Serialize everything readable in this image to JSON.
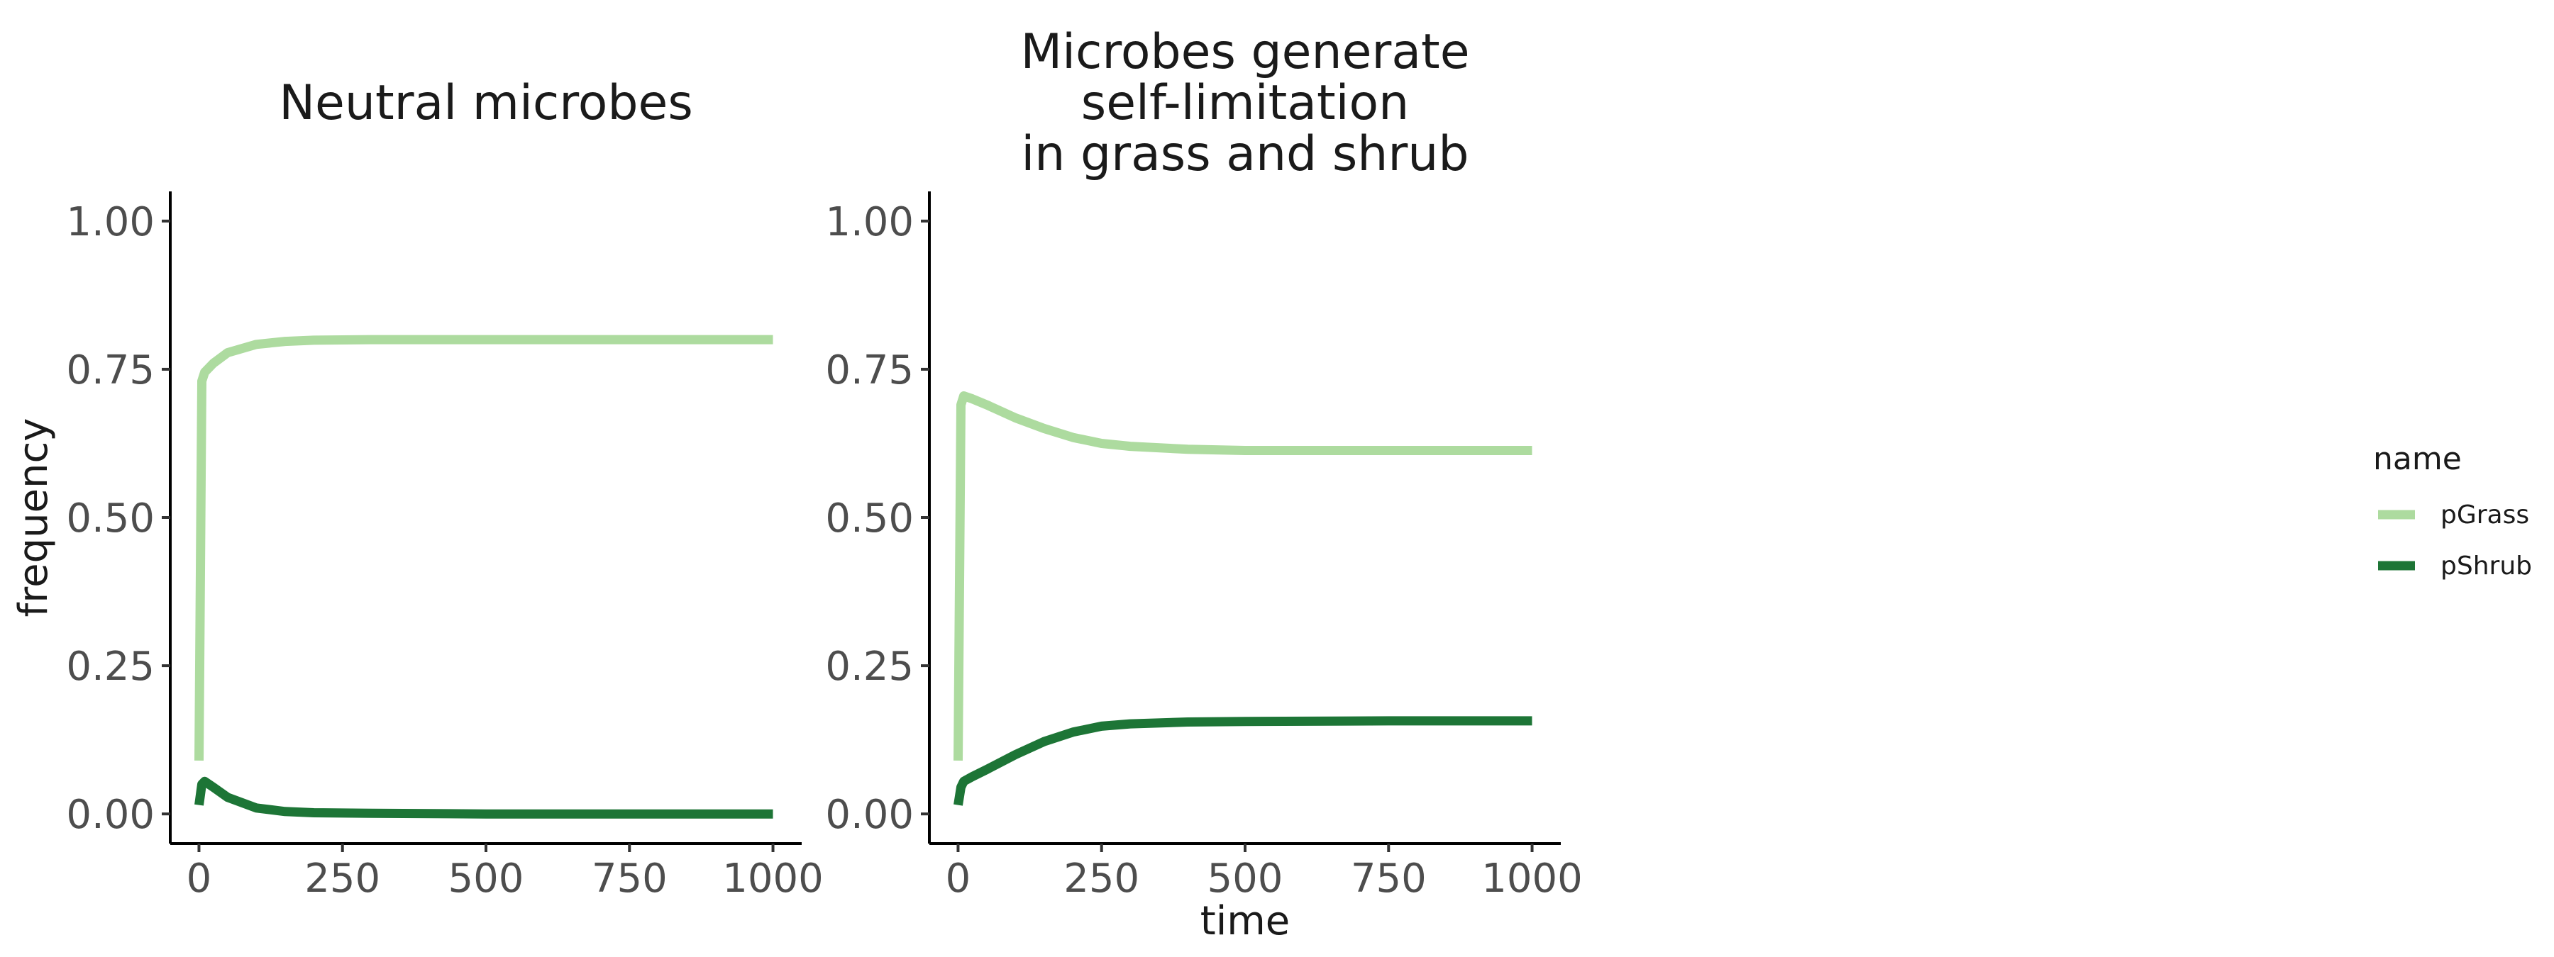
{
  "chart_data": [
    {
      "type": "line",
      "title_lines": [
        "Neutral microbes"
      ],
      "xlabel": "",
      "ylabel": "frequency",
      "xlim": [
        -50,
        1050
      ],
      "ylim": [
        -0.05,
        1.05
      ],
      "x_ticks": [
        0,
        250,
        500,
        750,
        1000
      ],
      "x_tick_labels": [
        "0",
        "250",
        "500",
        "750",
        "1000"
      ],
      "y_ticks": [
        0,
        0.25,
        0.5,
        0.75,
        1
      ],
      "y_tick_labels": [
        "0.00",
        "0.25",
        "0.50",
        "0.75",
        "1.00"
      ],
      "series": [
        {
          "name": "pGrass",
          "color": "#addb9f",
          "points": [
            [
              0,
              0.09
            ],
            [
              5,
              0.73
            ],
            [
              10,
              0.745
            ],
            [
              25,
              0.76
            ],
            [
              50,
              0.778
            ],
            [
              100,
              0.792
            ],
            [
              150,
              0.797
            ],
            [
              200,
              0.799
            ],
            [
              300,
              0.8
            ],
            [
              500,
              0.8
            ],
            [
              750,
              0.8
            ],
            [
              1000,
              0.8
            ]
          ]
        },
        {
          "name": "pShrub",
          "color": "#1d7536",
          "points": [
            [
              0,
              0.015
            ],
            [
              5,
              0.05
            ],
            [
              10,
              0.055
            ],
            [
              25,
              0.045
            ],
            [
              50,
              0.028
            ],
            [
              100,
              0.01
            ],
            [
              150,
              0.004
            ],
            [
              200,
              0.002
            ],
            [
              300,
              0.001
            ],
            [
              500,
              0.0
            ],
            [
              750,
              0.0
            ],
            [
              1000,
              0.0
            ]
          ]
        }
      ]
    },
    {
      "type": "line",
      "title_lines": [
        "Microbes generate",
        "self-limitation",
        "in grass and shrub"
      ],
      "xlabel": "time",
      "ylabel": "",
      "xlim": [
        -50,
        1050
      ],
      "ylim": [
        -0.05,
        1.05
      ],
      "x_ticks": [
        0,
        250,
        500,
        750,
        1000
      ],
      "x_tick_labels": [
        "0",
        "250",
        "500",
        "750",
        "1000"
      ],
      "y_ticks": [
        0,
        0.25,
        0.5,
        0.75,
        1
      ],
      "y_tick_labels": [
        "0.00",
        "0.25",
        "0.50",
        "0.75",
        "1.00"
      ],
      "series": [
        {
          "name": "pGrass",
          "color": "#addb9f",
          "points": [
            [
              0,
              0.09
            ],
            [
              5,
              0.69
            ],
            [
              10,
              0.705
            ],
            [
              25,
              0.7
            ],
            [
              50,
              0.69
            ],
            [
              100,
              0.668
            ],
            [
              150,
              0.65
            ],
            [
              200,
              0.635
            ],
            [
              250,
              0.625
            ],
            [
              300,
              0.62
            ],
            [
              400,
              0.615
            ],
            [
              500,
              0.613
            ],
            [
              750,
              0.613
            ],
            [
              1000,
              0.613
            ]
          ]
        },
        {
          "name": "pShrub",
          "color": "#1d7536",
          "points": [
            [
              0,
              0.015
            ],
            [
              5,
              0.045
            ],
            [
              10,
              0.055
            ],
            [
              25,
              0.063
            ],
            [
              50,
              0.075
            ],
            [
              100,
              0.1
            ],
            [
              150,
              0.122
            ],
            [
              200,
              0.138
            ],
            [
              250,
              0.148
            ],
            [
              300,
              0.152
            ],
            [
              400,
              0.155
            ],
            [
              500,
              0.156
            ],
            [
              750,
              0.157
            ],
            [
              1000,
              0.157
            ]
          ]
        }
      ]
    }
  ],
  "legend": {
    "title": "name",
    "placement": "right",
    "items": [
      {
        "label": "pGrass",
        "color": "#addb9f"
      },
      {
        "label": "pShrub",
        "color": "#1d7536"
      }
    ]
  }
}
